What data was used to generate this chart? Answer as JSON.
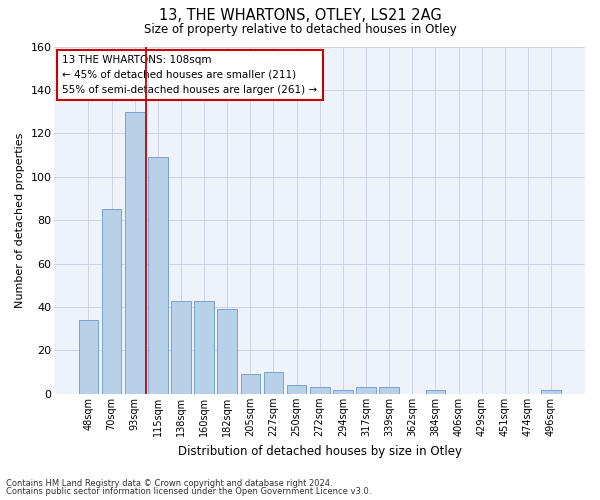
{
  "title": "13, THE WHARTONS, OTLEY, LS21 2AG",
  "subtitle": "Size of property relative to detached houses in Otley",
  "xlabel": "Distribution of detached houses by size in Otley",
  "ylabel": "Number of detached properties",
  "footer1": "Contains HM Land Registry data © Crown copyright and database right 2024.",
  "footer2": "Contains public sector information licensed under the Open Government Licence v3.0.",
  "annotation_line1": "13 THE WHARTONS: 108sqm",
  "annotation_line2": "← 45% of detached houses are smaller (211)",
  "annotation_line3": "55% of semi-detached houses are larger (261) →",
  "bar_color": "#b8d0e8",
  "bar_edge_color": "#6699cc",
  "vline_color": "#cc0000",
  "background_color": "#eef2fb",
  "grid_color": "#c8cfe0",
  "categories": [
    "48sqm",
    "70sqm",
    "93sqm",
    "115sqm",
    "138sqm",
    "160sqm",
    "182sqm",
    "205sqm",
    "227sqm",
    "250sqm",
    "272sqm",
    "294sqm",
    "317sqm",
    "339sqm",
    "362sqm",
    "384sqm",
    "406sqm",
    "429sqm",
    "451sqm",
    "474sqm",
    "496sqm"
  ],
  "values": [
    34,
    85,
    130,
    109,
    43,
    43,
    39,
    9,
    10,
    4,
    3,
    2,
    3,
    3,
    0,
    2,
    0,
    0,
    0,
    0,
    2
  ],
  "ylim": [
    0,
    160
  ],
  "yticks": [
    0,
    20,
    40,
    60,
    80,
    100,
    120,
    140,
    160
  ],
  "vline_x": 2.5
}
